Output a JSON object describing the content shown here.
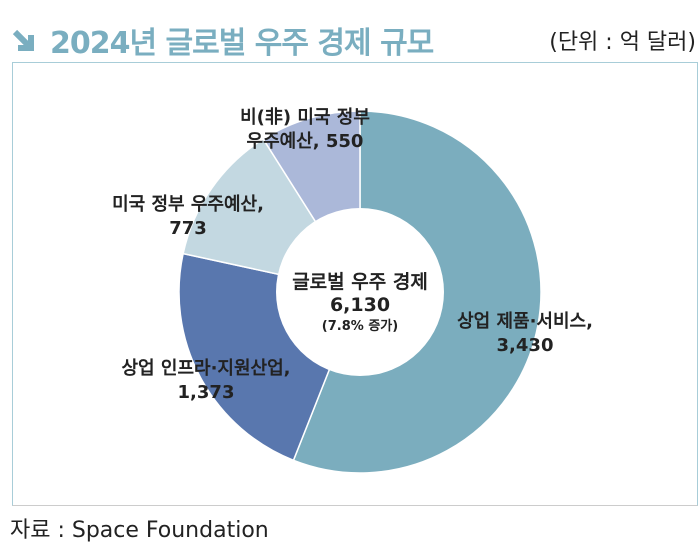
{
  "header": {
    "title": "2024년 글로벌 우주 경제 규모",
    "unit": "(단위 : 억 달러)",
    "icon": "arrow-down-right-icon"
  },
  "source": "자료 : Space Foundation",
  "chart_data": {
    "type": "pie",
    "donut": true,
    "title": "2024년 글로벌 우주 경제 규모",
    "unit": "억 달러",
    "center": {
      "label": "글로벌 우주 경제",
      "total": "6,130",
      "note": "(7.8% 증가)"
    },
    "categories": [
      "상업 제품·서비스",
      "상업 인프라·지원산업",
      "미국 정부 우주예산",
      "비(非) 미국 정부 우주예산"
    ],
    "values": [
      3430,
      1373,
      773,
      550
    ],
    "value_labels": [
      "3,430",
      "1,373",
      "773",
      "550"
    ],
    "colors": [
      "#7badbe",
      "#5977ae",
      "#c3d8e1",
      "#abb8d9"
    ],
    "start": "12 o'clock, clockwise"
  }
}
